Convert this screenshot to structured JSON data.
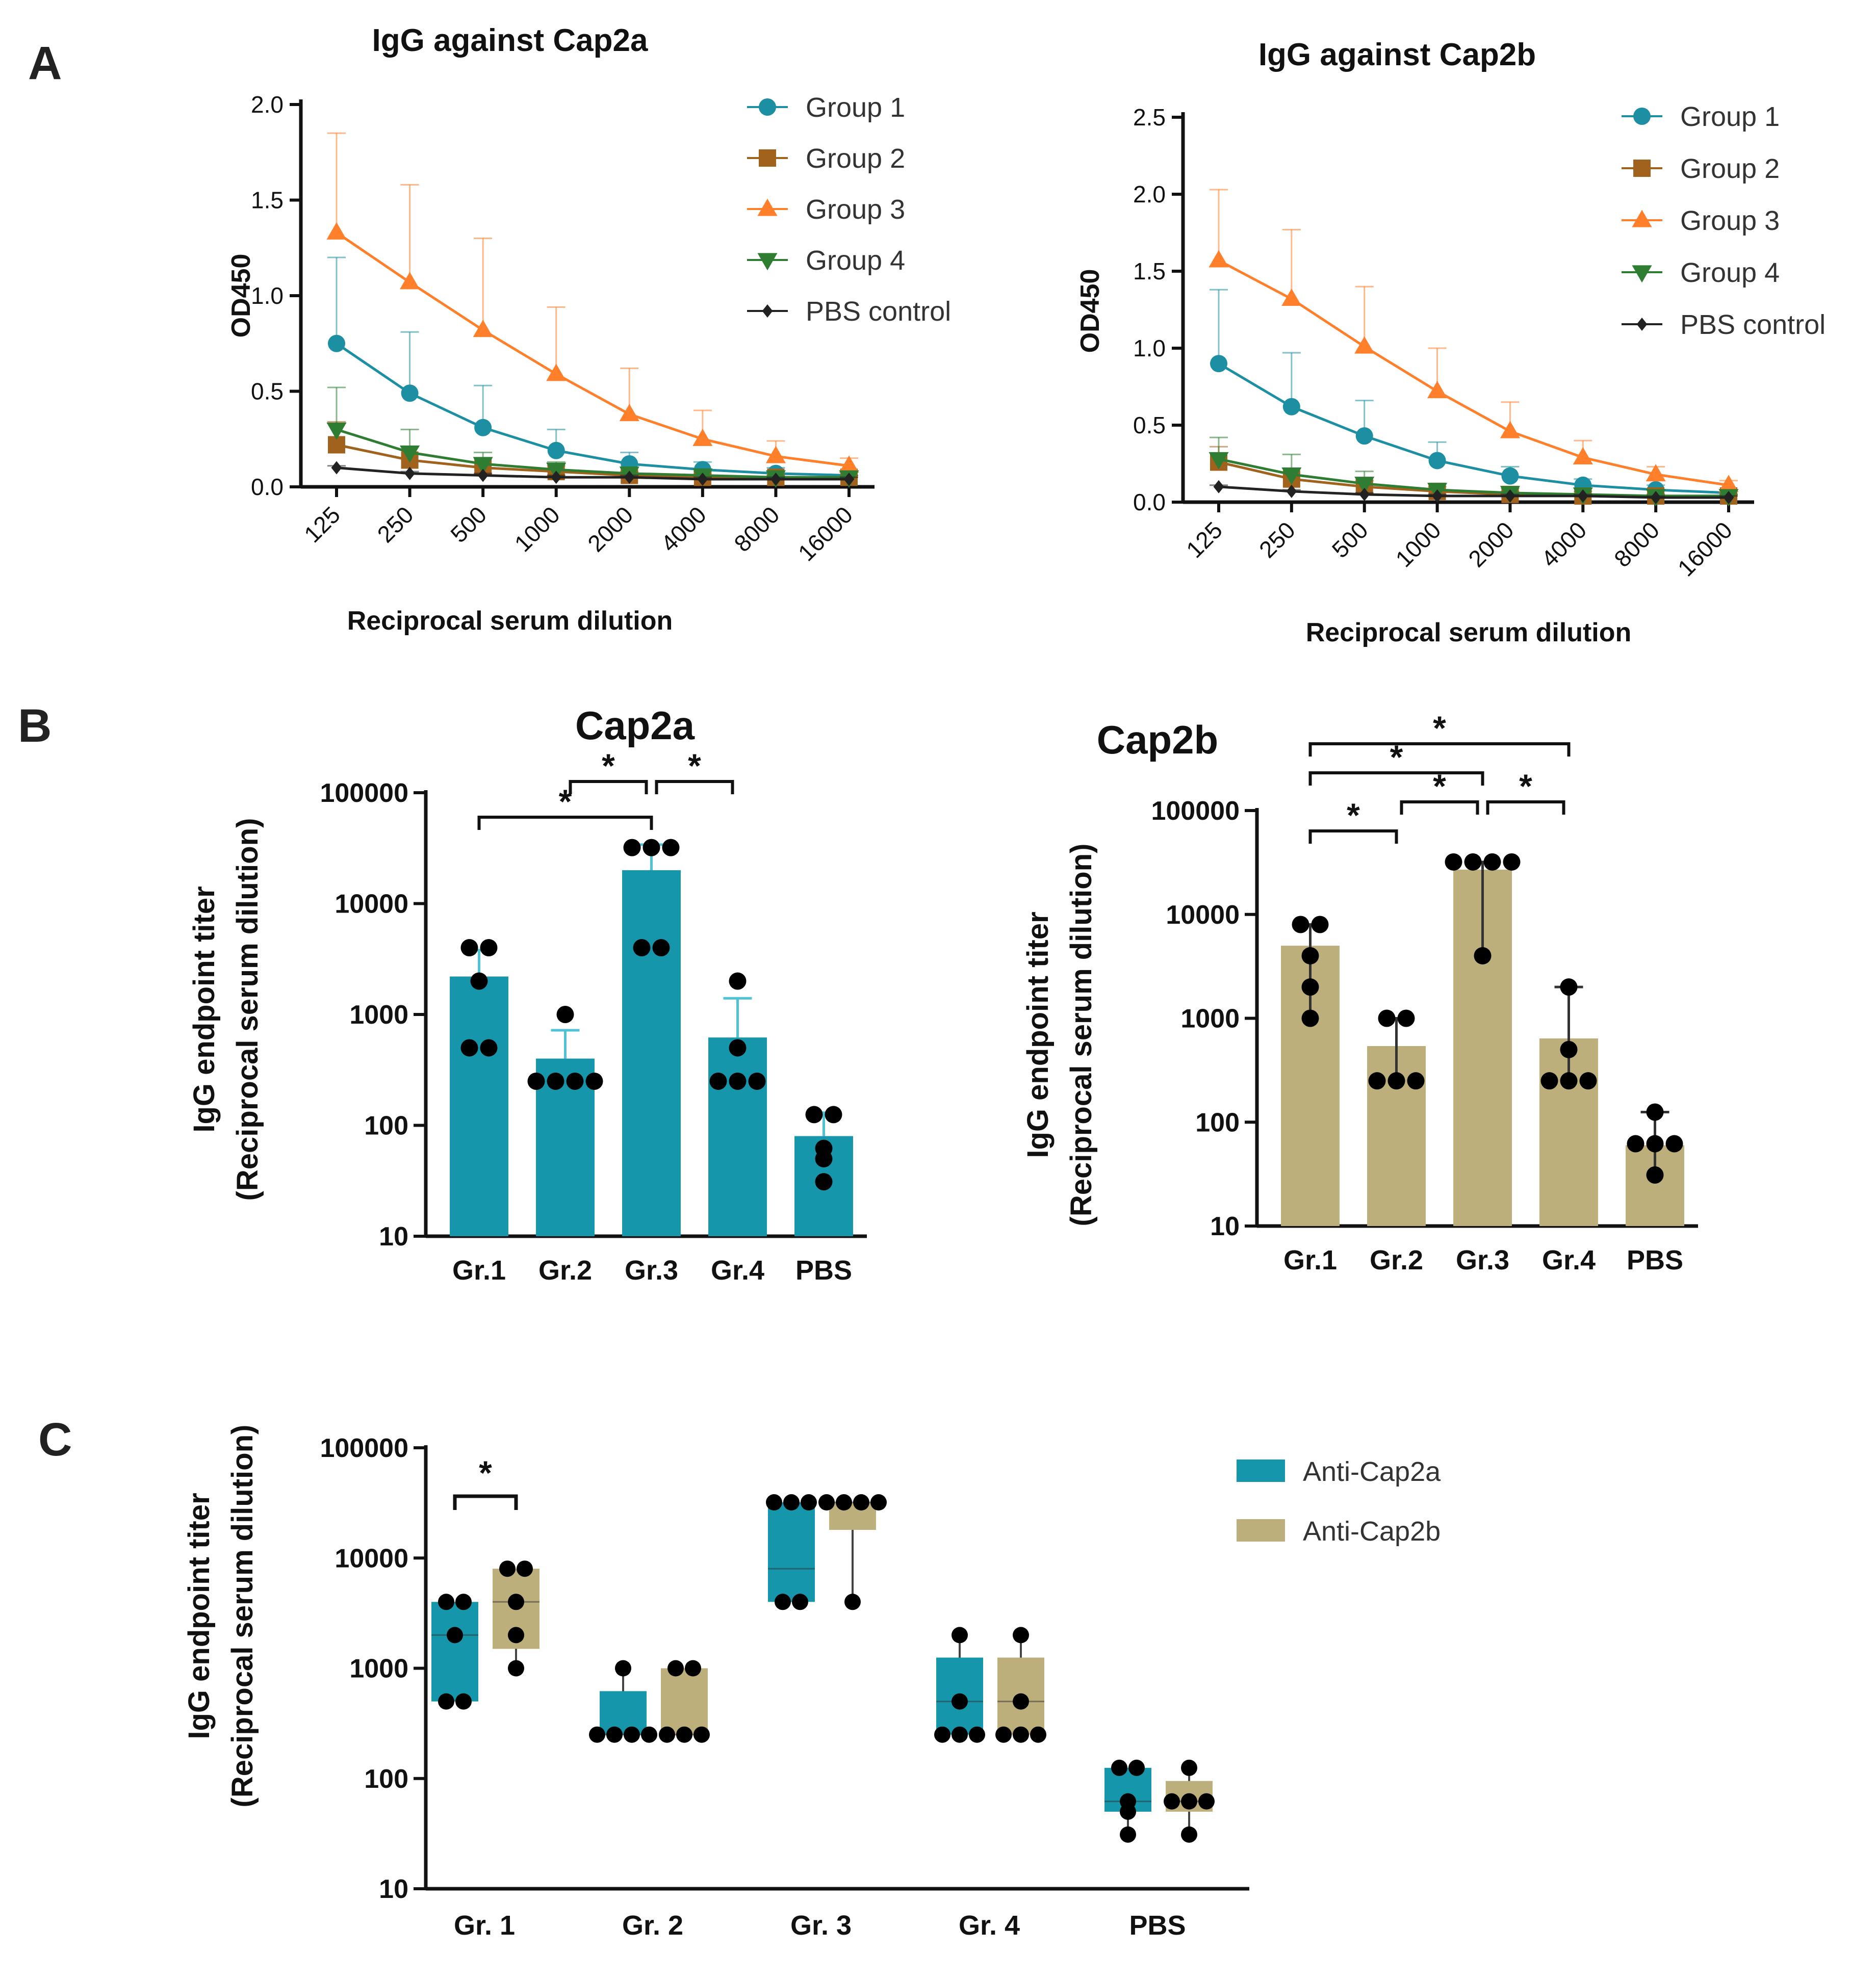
{
  "figure": {
    "panel_labels": [
      "A",
      "B",
      "C"
    ]
  },
  "chart_data": [
    {
      "id": "A1",
      "type": "line",
      "title": "IgG against Cap2a",
      "xlabel": "Reciprocal serum dilution",
      "ylabel": "OD450",
      "categories": [
        "125",
        "250",
        "500",
        "1000",
        "2000",
        "4000",
        "8000",
        "16000"
      ],
      "ylim": [
        0,
        2.0
      ],
      "yticks": [
        "0.0",
        "0.5",
        "1.0",
        "1.5",
        "2.0"
      ],
      "series": [
        {
          "name": "Group 1",
          "color": "#1d8fa3",
          "marker": "circle",
          "values": [
            0.75,
            0.49,
            0.31,
            0.19,
            0.12,
            0.09,
            0.07,
            0.06
          ],
          "errors": [
            0.45,
            0.32,
            0.22,
            0.11,
            0.06,
            0.04,
            0.03,
            0.02
          ]
        },
        {
          "name": "Group 2",
          "color": "#a0621c",
          "marker": "square",
          "values": [
            0.22,
            0.14,
            0.1,
            0.08,
            0.06,
            0.05,
            0.05,
            0.05
          ],
          "errors": [
            0.12,
            0.07,
            0.05,
            0.03,
            0.02,
            0.02,
            0.01,
            0.01
          ]
        },
        {
          "name": "Group 3",
          "color": "#ff7f2a",
          "marker": "triangle",
          "values": [
            1.33,
            1.07,
            0.82,
            0.59,
            0.38,
            0.25,
            0.16,
            0.11
          ],
          "errors": [
            0.52,
            0.51,
            0.48,
            0.35,
            0.24,
            0.15,
            0.08,
            0.04
          ]
        },
        {
          "name": "Group 4",
          "color": "#2e7d32",
          "marker": "triangle-down",
          "values": [
            0.3,
            0.18,
            0.12,
            0.09,
            0.07,
            0.06,
            0.05,
            0.05
          ],
          "errors": [
            0.22,
            0.12,
            0.06,
            0.04,
            0.03,
            0.02,
            0.01,
            0.01
          ]
        },
        {
          "name": "PBS control",
          "color": "#222222",
          "marker": "diamond",
          "values": [
            0.1,
            0.07,
            0.06,
            0.05,
            0.05,
            0.04,
            0.04,
            0.04
          ],
          "errors": [
            0.01,
            0.01,
            0.01,
            0.01,
            0.01,
            0.01,
            0.01,
            0.01
          ]
        }
      ]
    },
    {
      "id": "A2",
      "type": "line",
      "title": "IgG against Cap2b",
      "xlabel": "Reciprocal serum dilution",
      "ylabel": "OD450",
      "categories": [
        "125",
        "250",
        "500",
        "1000",
        "2000",
        "4000",
        "8000",
        "16000"
      ],
      "ylim": [
        0,
        2.5
      ],
      "yticks": [
        "0.0",
        "0.5",
        "1.0",
        "1.5",
        "2.0",
        "2.5"
      ],
      "series": [
        {
          "name": "Group 1",
          "color": "#1d8fa3",
          "marker": "circle",
          "values": [
            0.9,
            0.62,
            0.43,
            0.27,
            0.17,
            0.11,
            0.08,
            0.06
          ],
          "errors": [
            0.48,
            0.35,
            0.23,
            0.12,
            0.06,
            0.04,
            0.03,
            0.02
          ]
        },
        {
          "name": "Group 2",
          "color": "#a0621c",
          "marker": "square",
          "values": [
            0.26,
            0.15,
            0.1,
            0.07,
            0.05,
            0.04,
            0.04,
            0.04
          ],
          "errors": [
            0.1,
            0.07,
            0.04,
            0.03,
            0.02,
            0.01,
            0.01,
            0.01
          ]
        },
        {
          "name": "Group 3",
          "color": "#ff7f2a",
          "marker": "triangle",
          "values": [
            1.57,
            1.32,
            1.01,
            0.72,
            0.46,
            0.29,
            0.18,
            0.11
          ],
          "errors": [
            0.46,
            0.45,
            0.39,
            0.28,
            0.19,
            0.11,
            0.05,
            0.03
          ]
        },
        {
          "name": "Group 4",
          "color": "#2e7d32",
          "marker": "triangle-down",
          "values": [
            0.28,
            0.18,
            0.12,
            0.08,
            0.06,
            0.05,
            0.04,
            0.04
          ],
          "errors": [
            0.14,
            0.13,
            0.08,
            0.04,
            0.03,
            0.02,
            0.01,
            0.01
          ]
        },
        {
          "name": "PBS control",
          "color": "#222222",
          "marker": "diamond",
          "values": [
            0.1,
            0.07,
            0.05,
            0.04,
            0.04,
            0.04,
            0.03,
            0.03
          ],
          "errors": [
            0.01,
            0.01,
            0.01,
            0.01,
            0.01,
            0.01,
            0.01,
            0.01
          ]
        }
      ]
    },
    {
      "id": "B1",
      "type": "bar",
      "title": "Cap2a",
      "ylabel_line1": "IgG endpoint titer",
      "ylabel_line2": "(Reciprocal serum dilution)",
      "yscale": "log",
      "ylim": [
        10,
        100000
      ],
      "yticks": [
        "10",
        "100",
        "1000",
        "10000",
        "100000"
      ],
      "color": "#1596aa",
      "categories": [
        "Gr.1",
        "Gr.2",
        "Gr.3",
        "Gr.4",
        "PBS"
      ],
      "values": [
        2200,
        400,
        20000,
        620,
        80
      ],
      "error_upper": [
        3800,
        720,
        34000,
        1400,
        130
      ],
      "points": [
        [
          4000,
          4000,
          2000,
          500,
          500
        ],
        [
          1000,
          250,
          250,
          250,
          250
        ],
        [
          32000,
          32000,
          32000,
          4000,
          4000
        ],
        [
          2000,
          500,
          250,
          250,
          250
        ],
        [
          125,
          125,
          62,
          50,
          31
        ]
      ],
      "significance": [
        {
          "from": 0,
          "to": 2,
          "label": "*",
          "level": 0
        },
        {
          "from": 1,
          "to": 2,
          "label": "*",
          "level": 1
        },
        {
          "from": 2,
          "to": 3,
          "label": "*",
          "level": 1
        }
      ]
    },
    {
      "id": "B2",
      "type": "bar",
      "title": "Cap2b",
      "ylabel_line1": "IgG endpoint titer",
      "ylabel_line2": "(Reciprocal serum dilution)",
      "yscale": "log",
      "ylim": [
        10,
        100000
      ],
      "yticks": [
        "10",
        "100",
        "1000",
        "10000",
        "100000"
      ],
      "color": "#bdaf7b",
      "categories": [
        "Gr.1",
        "Gr.2",
        "Gr.3",
        "Gr.4",
        "PBS"
      ],
      "values": [
        5000,
        540,
        27000,
        640,
        60
      ],
      "error_upper": [
        8000,
        1000,
        32000,
        2000,
        125
      ],
      "error_lower": [
        1000,
        250,
        4000,
        250,
        31
      ],
      "points": [
        [
          8000,
          8000,
          4000,
          2000,
          1000
        ],
        [
          1000,
          1000,
          250,
          250,
          250
        ],
        [
          32000,
          32000,
          32000,
          32000,
          4000
        ],
        [
          2000,
          500,
          250,
          250,
          250
        ],
        [
          125,
          62,
          62,
          62,
          31
        ]
      ],
      "significance": [
        {
          "from": 0,
          "to": 1,
          "label": "*",
          "level": 0
        },
        {
          "from": 1,
          "to": 2,
          "label": "*",
          "level": 1
        },
        {
          "from": 2,
          "to": 3,
          "label": "*",
          "level": 1
        },
        {
          "from": 0,
          "to": 2,
          "label": "*",
          "level": 2
        },
        {
          "from": 0,
          "to": 3,
          "label": "*",
          "level": 3
        }
      ]
    },
    {
      "id": "C",
      "type": "box",
      "ylabel_line1": "IgG endpoint titer",
      "ylabel_line2": "(Reciprocal serum dilution)",
      "yscale": "log",
      "ylim": [
        10,
        100000
      ],
      "yticks": [
        "10",
        "100",
        "1000",
        "10000",
        "100000"
      ],
      "categories": [
        "Gr. 1",
        "Gr. 2",
        "Gr. 3",
        "Gr. 4",
        "PBS"
      ],
      "series": [
        {
          "name": "Anti-Cap2a",
          "color": "#1596aa",
          "boxes": [
            [
              500,
              500,
              2000,
              4000,
              4000
            ],
            [
              250,
              250,
              250,
              620,
              1000
            ],
            [
              4000,
              4000,
              8000,
              32000,
              32000
            ],
            [
              250,
              250,
              500,
              1250,
              2000
            ],
            [
              31,
              50,
              62,
              125,
              125
            ]
          ],
          "points": [
            [
              4000,
              4000,
              2000,
              500,
              500
            ],
            [
              1000,
              250,
              250,
              250,
              250
            ],
            [
              32000,
              32000,
              32000,
              4000,
              4000
            ],
            [
              2000,
              500,
              250,
              250,
              250
            ],
            [
              125,
              125,
              62,
              50,
              31
            ]
          ]
        },
        {
          "name": "Anti-Cap2b",
          "color": "#bdaf7b",
          "boxes": [
            [
              1000,
              1500,
              4000,
              8000,
              8000
            ],
            [
              250,
              250,
              250,
              1000,
              1000
            ],
            [
              4000,
              18000,
              32000,
              32000,
              32000
            ],
            [
              250,
              250,
              500,
              1250,
              2000
            ],
            [
              31,
              50,
              62,
              95,
              125
            ]
          ],
          "points": [
            [
              8000,
              8000,
              4000,
              2000,
              1000
            ],
            [
              1000,
              1000,
              250,
              250,
              250
            ],
            [
              32000,
              32000,
              32000,
              32000,
              4000
            ],
            [
              2000,
              500,
              250,
              250,
              250
            ],
            [
              125,
              62,
              62,
              62,
              31
            ]
          ]
        }
      ],
      "significance": [
        {
          "group": 0,
          "label": "*"
        }
      ]
    }
  ]
}
